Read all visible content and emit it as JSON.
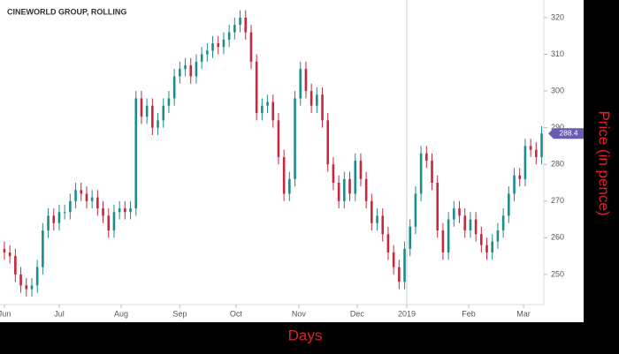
{
  "chart_data": {
    "type": "candlestick",
    "title": "CINEWORLD GROUP, ROLLING",
    "x_label": "Days",
    "y_label": "Price (in pence)",
    "up_color": "#1f8c8c",
    "down_color": "#c4283f",
    "last_price_color": "#6b5bb5",
    "grid": false,
    "x": [
      0,
      2,
      4,
      6,
      8,
      10,
      12,
      14,
      16,
      18,
      20,
      22,
      24,
      26,
      28,
      30,
      32,
      34,
      36,
      38,
      40,
      42,
      44,
      46,
      48,
      50,
      52,
      54,
      56,
      58,
      60,
      62,
      64,
      66,
      68,
      70,
      72,
      74,
      76,
      78,
      80,
      82,
      84,
      86,
      88,
      90,
      92,
      94,
      96,
      98,
      100,
      102,
      104,
      106,
      108,
      110,
      112,
      114,
      116,
      118,
      120,
      122,
      124,
      126,
      128,
      130,
      132,
      134,
      136,
      138,
      140,
      142,
      144,
      146,
      148,
      150,
      152,
      154,
      156,
      158,
      160,
      162,
      164,
      166,
      168,
      170,
      172,
      174,
      176,
      178,
      180,
      182,
      184,
      186,
      188,
      190,
      192,
      194,
      196
    ],
    "open": [
      257,
      256,
      255,
      250,
      247,
      246,
      247,
      252,
      262,
      266,
      264,
      267,
      267,
      270,
      273,
      272,
      270,
      271,
      268,
      266,
      262,
      267,
      268,
      267,
      268,
      298,
      293,
      296,
      290,
      292,
      296,
      298,
      304,
      306,
      307,
      304,
      308,
      310,
      311,
      313,
      312,
      314,
      316,
      318,
      320,
      316,
      308,
      294,
      296,
      297,
      292,
      282,
      272,
      276,
      298,
      306,
      300,
      296,
      299,
      292,
      280,
      275,
      270,
      276,
      272,
      281,
      276,
      270,
      264,
      266,
      261,
      256,
      252,
      248,
      257,
      263,
      272,
      283,
      281,
      275,
      262,
      256,
      265,
      268,
      266,
      262,
      265,
      261,
      258,
      256,
      259,
      262,
      266,
      272,
      277,
      276,
      285,
      284,
      282
    ],
    "high": [
      259,
      258,
      257,
      252,
      249,
      249,
      254,
      264,
      268,
      268,
      269,
      269,
      272,
      275,
      275,
      274,
      273,
      273,
      270,
      268,
      269,
      270,
      270,
      270,
      300,
      300,
      298,
      298,
      294,
      298,
      300,
      306,
      308,
      309,
      309,
      310,
      312,
      313,
      315,
      315,
      316,
      318,
      320,
      322,
      322,
      318,
      310,
      298,
      299,
      299,
      294,
      284,
      278,
      300,
      308,
      308,
      302,
      301,
      301,
      294,
      282,
      277,
      278,
      278,
      283,
      283,
      278,
      272,
      268,
      268,
      263,
      258,
      254,
      259,
      265,
      274,
      285,
      285,
      283,
      277,
      264,
      267,
      270,
      270,
      268,
      267,
      267,
      263,
      260,
      261,
      264,
      268,
      274,
      279,
      279,
      287,
      287,
      286,
      290.4
    ],
    "low": [
      254,
      253,
      248,
      245,
      244,
      244,
      245,
      250,
      260,
      262,
      262,
      265,
      265,
      268,
      270,
      268,
      268,
      266,
      264,
      260,
      260,
      265,
      265,
      265,
      266,
      291,
      291,
      288,
      288,
      290,
      294,
      296,
      302,
      304,
      302,
      302,
      306,
      308,
      309,
      310,
      310,
      312,
      314,
      316,
      314,
      306,
      292,
      292,
      294,
      290,
      280,
      270,
      270,
      274,
      296,
      298,
      294,
      294,
      290,
      278,
      273,
      268,
      268,
      270,
      270,
      274,
      268,
      262,
      262,
      259,
      254,
      250,
      246,
      246,
      255,
      261,
      270,
      279,
      273,
      260,
      254,
      254,
      263,
      264,
      260,
      260,
      259,
      256,
      254,
      254,
      257,
      260,
      264,
      270,
      274,
      274,
      282,
      280,
      280
    ],
    "close": [
      256,
      255,
      250,
      247,
      246,
      247,
      252,
      262,
      266,
      264,
      267,
      267,
      270,
      273,
      272,
      270,
      271,
      268,
      266,
      262,
      267,
      268,
      267,
      268,
      298,
      293,
      296,
      290,
      292,
      296,
      298,
      304,
      306,
      307,
      304,
      308,
      310,
      311,
      313,
      312,
      314,
      316,
      318,
      320,
      316,
      308,
      294,
      296,
      297,
      292,
      282,
      272,
      276,
      298,
      306,
      300,
      296,
      299,
      292,
      280,
      275,
      270,
      276,
      272,
      281,
      276,
      270,
      264,
      266,
      261,
      256,
      252,
      248,
      257,
      263,
      272,
      283,
      281,
      275,
      262,
      256,
      265,
      268,
      266,
      262,
      265,
      261,
      258,
      256,
      259,
      262,
      266,
      272,
      277,
      276,
      285,
      284,
      282,
      288.4
    ],
    "xlim": [
      -1.6,
      196.8
    ],
    "xticks": [
      {
        "value": 0,
        "label": "Jun"
      },
      {
        "value": 20,
        "label": "Jul"
      },
      {
        "value": 42.6,
        "label": "Aug"
      },
      {
        "value": 64,
        "label": "Sep"
      },
      {
        "value": 84.5,
        "label": "Oct"
      },
      {
        "value": 107.4,
        "label": "Nov"
      },
      {
        "value": 128.7,
        "label": "Dec"
      },
      {
        "value": 146.8,
        "label": "2019"
      },
      {
        "value": 169.4,
        "label": "Feb"
      },
      {
        "value": 189.4,
        "label": "Mar"
      }
    ],
    "ylim": [
      241.8,
      324.8
    ],
    "yticks": [
      250,
      260,
      270,
      280,
      290,
      300,
      310,
      320
    ]
  }
}
